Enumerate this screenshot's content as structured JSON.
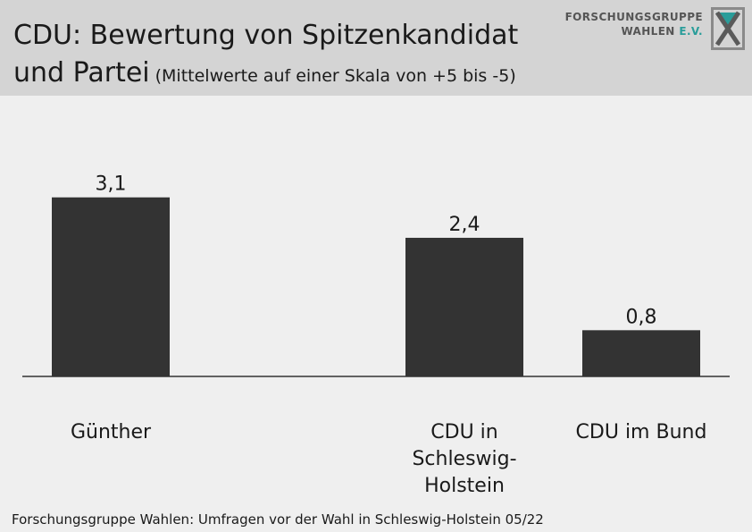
{
  "header": {
    "title_line1": "CDU: Bewertung von Spitzenkandidat",
    "title_line2": "und Partei",
    "subtitle": "(Mittelwerte auf einer Skala von +5 bis -5)"
  },
  "logo": {
    "line1": "FORSCHUNGSGRUPPE",
    "line2_main": "WAHLEN ",
    "line2_accent": "E.V.",
    "icon": "fgw-x-logo-icon",
    "accent_color": "#2a9d9a"
  },
  "chart_data": {
    "type": "bar",
    "categories": [
      "Günther",
      "",
      "CDU in Schleswig-Holstein",
      "CDU im Bund"
    ],
    "category_label_lines": [
      [
        "Günther"
      ],
      [],
      [
        "CDU in",
        "Schleswig-",
        "Holstein"
      ],
      [
        "CDU im Bund"
      ]
    ],
    "values": [
      3.1,
      null,
      2.4,
      0.8
    ],
    "value_labels": [
      "3,1",
      "",
      "2,4",
      "0,8"
    ],
    "ylim": [
      0,
      5
    ],
    "bar_color": "#333333",
    "grid": false,
    "legend": "none"
  },
  "footer": {
    "source": "Forschungsgruppe Wahlen: Umfragen vor der Wahl in Schleswig-Holstein 05/22"
  }
}
